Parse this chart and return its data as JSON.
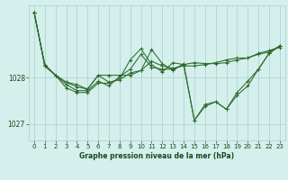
{
  "title": "Graphe pression niveau de la mer (hPa)",
  "bg_color": "#d4efec",
  "grid_color": "#b0d5d0",
  "line_color": "#2d6a2d",
  "marker_color": "#2d6a2d",
  "label_color": "#1a4a1a",
  "xlim": [
    -0.5,
    23.5
  ],
  "ylim": [
    1026.65,
    1029.55
  ],
  "yticks": [
    1027,
    1028
  ],
  "xticks": [
    0,
    1,
    2,
    3,
    4,
    5,
    6,
    7,
    8,
    9,
    10,
    11,
    12,
    13,
    14,
    15,
    16,
    17,
    18,
    19,
    20,
    21,
    22,
    23
  ],
  "series": [
    [
      1029.4,
      1028.25,
      1028.05,
      1027.9,
      1027.85,
      1027.75,
      1028.05,
      1028.05,
      1028.05,
      1028.05,
      1028.15,
      1028.35,
      1028.25,
      1028.2,
      1028.25,
      1028.25,
      1028.28,
      1028.32,
      1028.38,
      1028.42,
      1028.42,
      1028.52,
      1028.58,
      1028.65
    ],
    [
      1029.4,
      1028.25,
      1028.05,
      1027.9,
      1027.8,
      1027.75,
      1028.05,
      1027.9,
      1027.95,
      1028.1,
      1028.15,
      1028.6,
      1028.3,
      1028.15,
      1028.3,
      1027.08,
      1027.42,
      1027.48,
      1027.32,
      1027.68,
      1027.92,
      1028.18,
      1028.52,
      1028.68
    ],
    [
      1029.4,
      1028.25,
      1028.05,
      1027.85,
      1027.72,
      1027.72,
      1027.92,
      1027.82,
      1028.02,
      1028.18,
      1028.5,
      1028.22,
      1028.18,
      1028.18,
      1028.28,
      1027.08,
      1027.38,
      1027.48,
      1027.32,
      1027.62,
      1027.82,
      1028.18,
      1028.52,
      1028.68
    ],
    [
      1029.4,
      1028.28,
      1028.05,
      1027.78,
      1027.68,
      1027.68,
      1027.88,
      1027.88,
      1027.98,
      1028.38,
      1028.62,
      1028.28,
      1028.12,
      1028.32,
      1028.28,
      1028.32,
      1028.3,
      1028.3,
      1028.32,
      1028.38,
      1028.42,
      1028.5,
      1028.55,
      1028.68
    ]
  ]
}
